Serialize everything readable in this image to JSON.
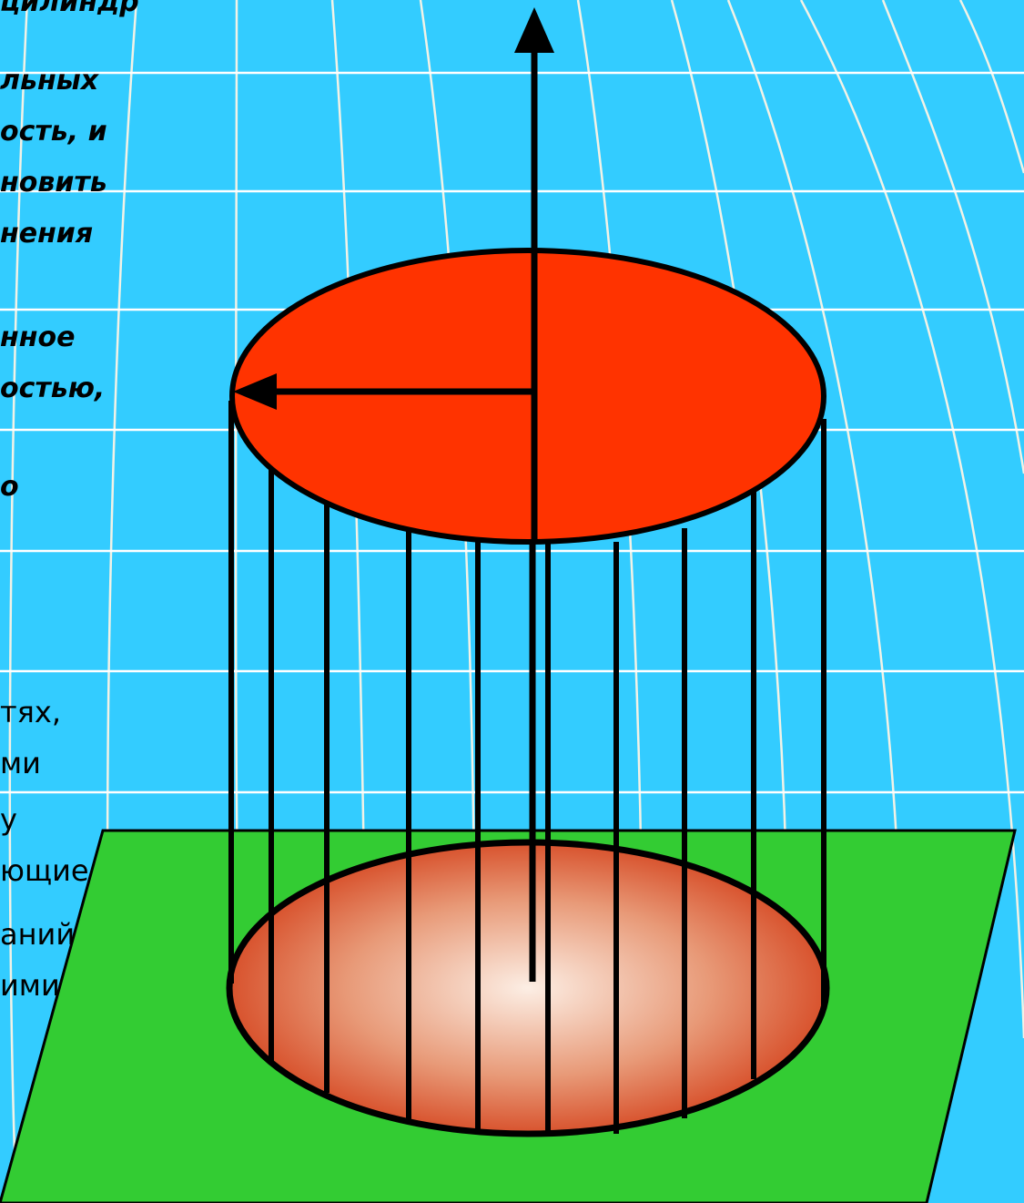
{
  "colors": {
    "background": "#33CCFF",
    "grid": "#FFFFFF",
    "plane": "#33CC33",
    "top_disk": "#FF3300",
    "bottom_disk_center": "#FCEEE4",
    "bottom_disk_edge": "#D4401A",
    "lines": "#000000"
  },
  "text": {
    "upper_lines": [
      "цилиндр",
      "льных",
      "ость, и",
      "новить",
      "нения",
      "нное",
      "остью,",
      "о"
    ],
    "lower_lines": [
      "тях,",
      "ми",
      "у",
      "ющие",
      "аний",
      "ими"
    ]
  }
}
